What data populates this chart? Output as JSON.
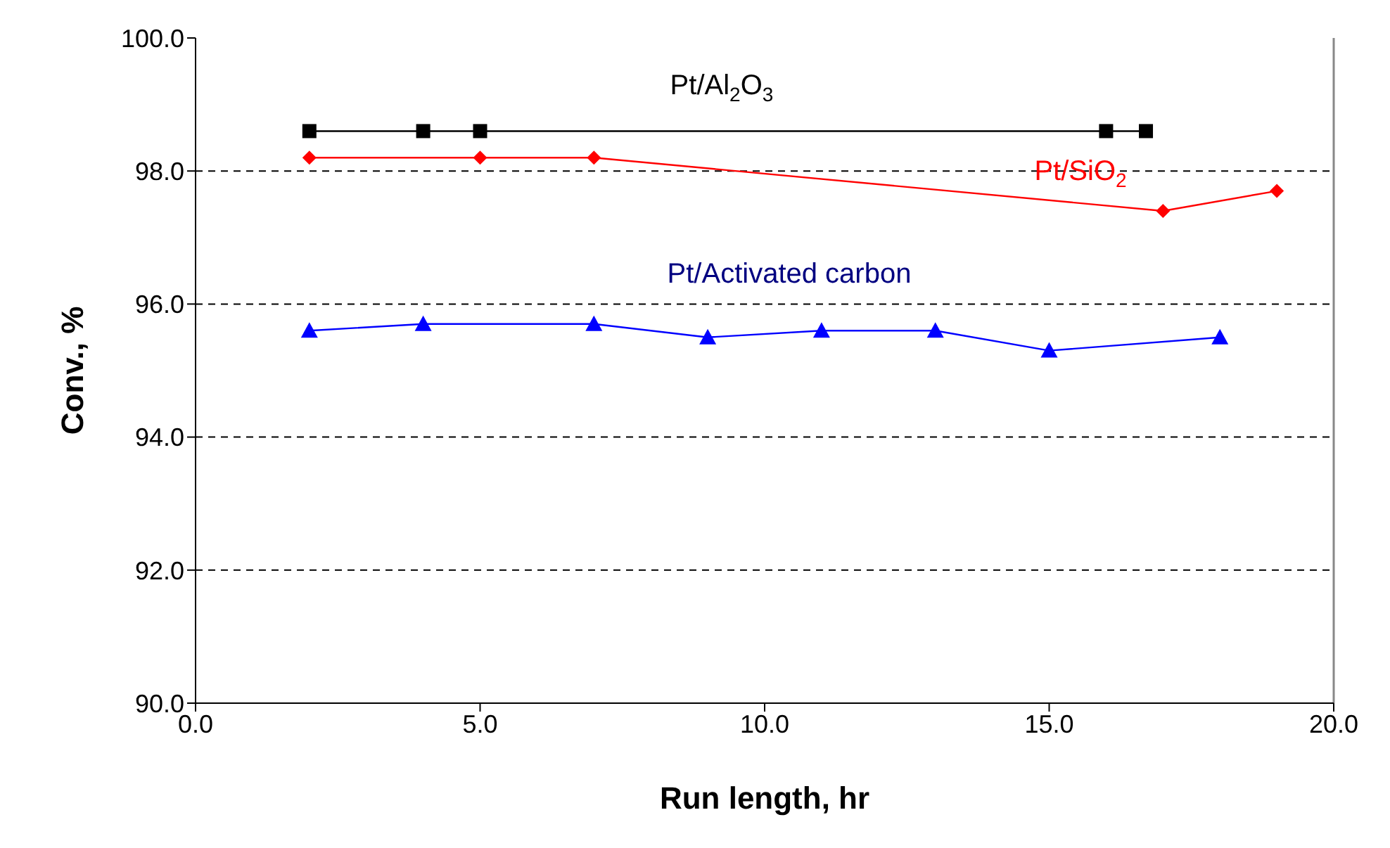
{
  "chart_data": {
    "type": "line",
    "xlabel": "Run length, hr",
    "ylabel": "Conv., %",
    "xlim": [
      0,
      20
    ],
    "ylim": [
      90,
      100
    ],
    "xticks": [
      {
        "value": 0,
        "label": "0.0"
      },
      {
        "value": 5,
        "label": "5.0"
      },
      {
        "value": 10,
        "label": "10.0"
      },
      {
        "value": 15,
        "label": "15.0"
      },
      {
        "value": 20,
        "label": "20.0"
      }
    ],
    "yticks": [
      {
        "value": 90,
        "label": "90.0"
      },
      {
        "value": 92,
        "label": "92.0"
      },
      {
        "value": 94,
        "label": "94.0"
      },
      {
        "value": 96,
        "label": "96.0"
      },
      {
        "value": 98,
        "label": "98.0"
      },
      {
        "value": 100,
        "label": "100.0"
      }
    ],
    "grid": "y",
    "line_style": "solid",
    "series": [
      {
        "name": "Pt/Al$_{2}$O$_{3}$",
        "color": "#000000",
        "marker": "square",
        "x": [
          2,
          4,
          5,
          16,
          16.7
        ],
        "values": [
          98.6,
          98.6,
          98.6,
          98.6,
          98.6
        ]
      },
      {
        "name": "Pt/SiO$_{2}$",
        "color": "#ff0000",
        "marker": "diamond",
        "x": [
          2,
          5,
          7,
          17,
          19
        ],
        "values": [
          98.2,
          98.2,
          98.2,
          97.4,
          97.7
        ]
      },
      {
        "name": "Pt/Activated carbon",
        "color": "#0000ff",
        "marker": "triangle",
        "x": [
          2,
          4,
          7,
          9,
          11,
          13,
          15,
          18
        ],
        "values": [
          95.6,
          95.7,
          95.7,
          95.5,
          95.6,
          95.6,
          95.3,
          95.5
        ]
      }
    ]
  }
}
